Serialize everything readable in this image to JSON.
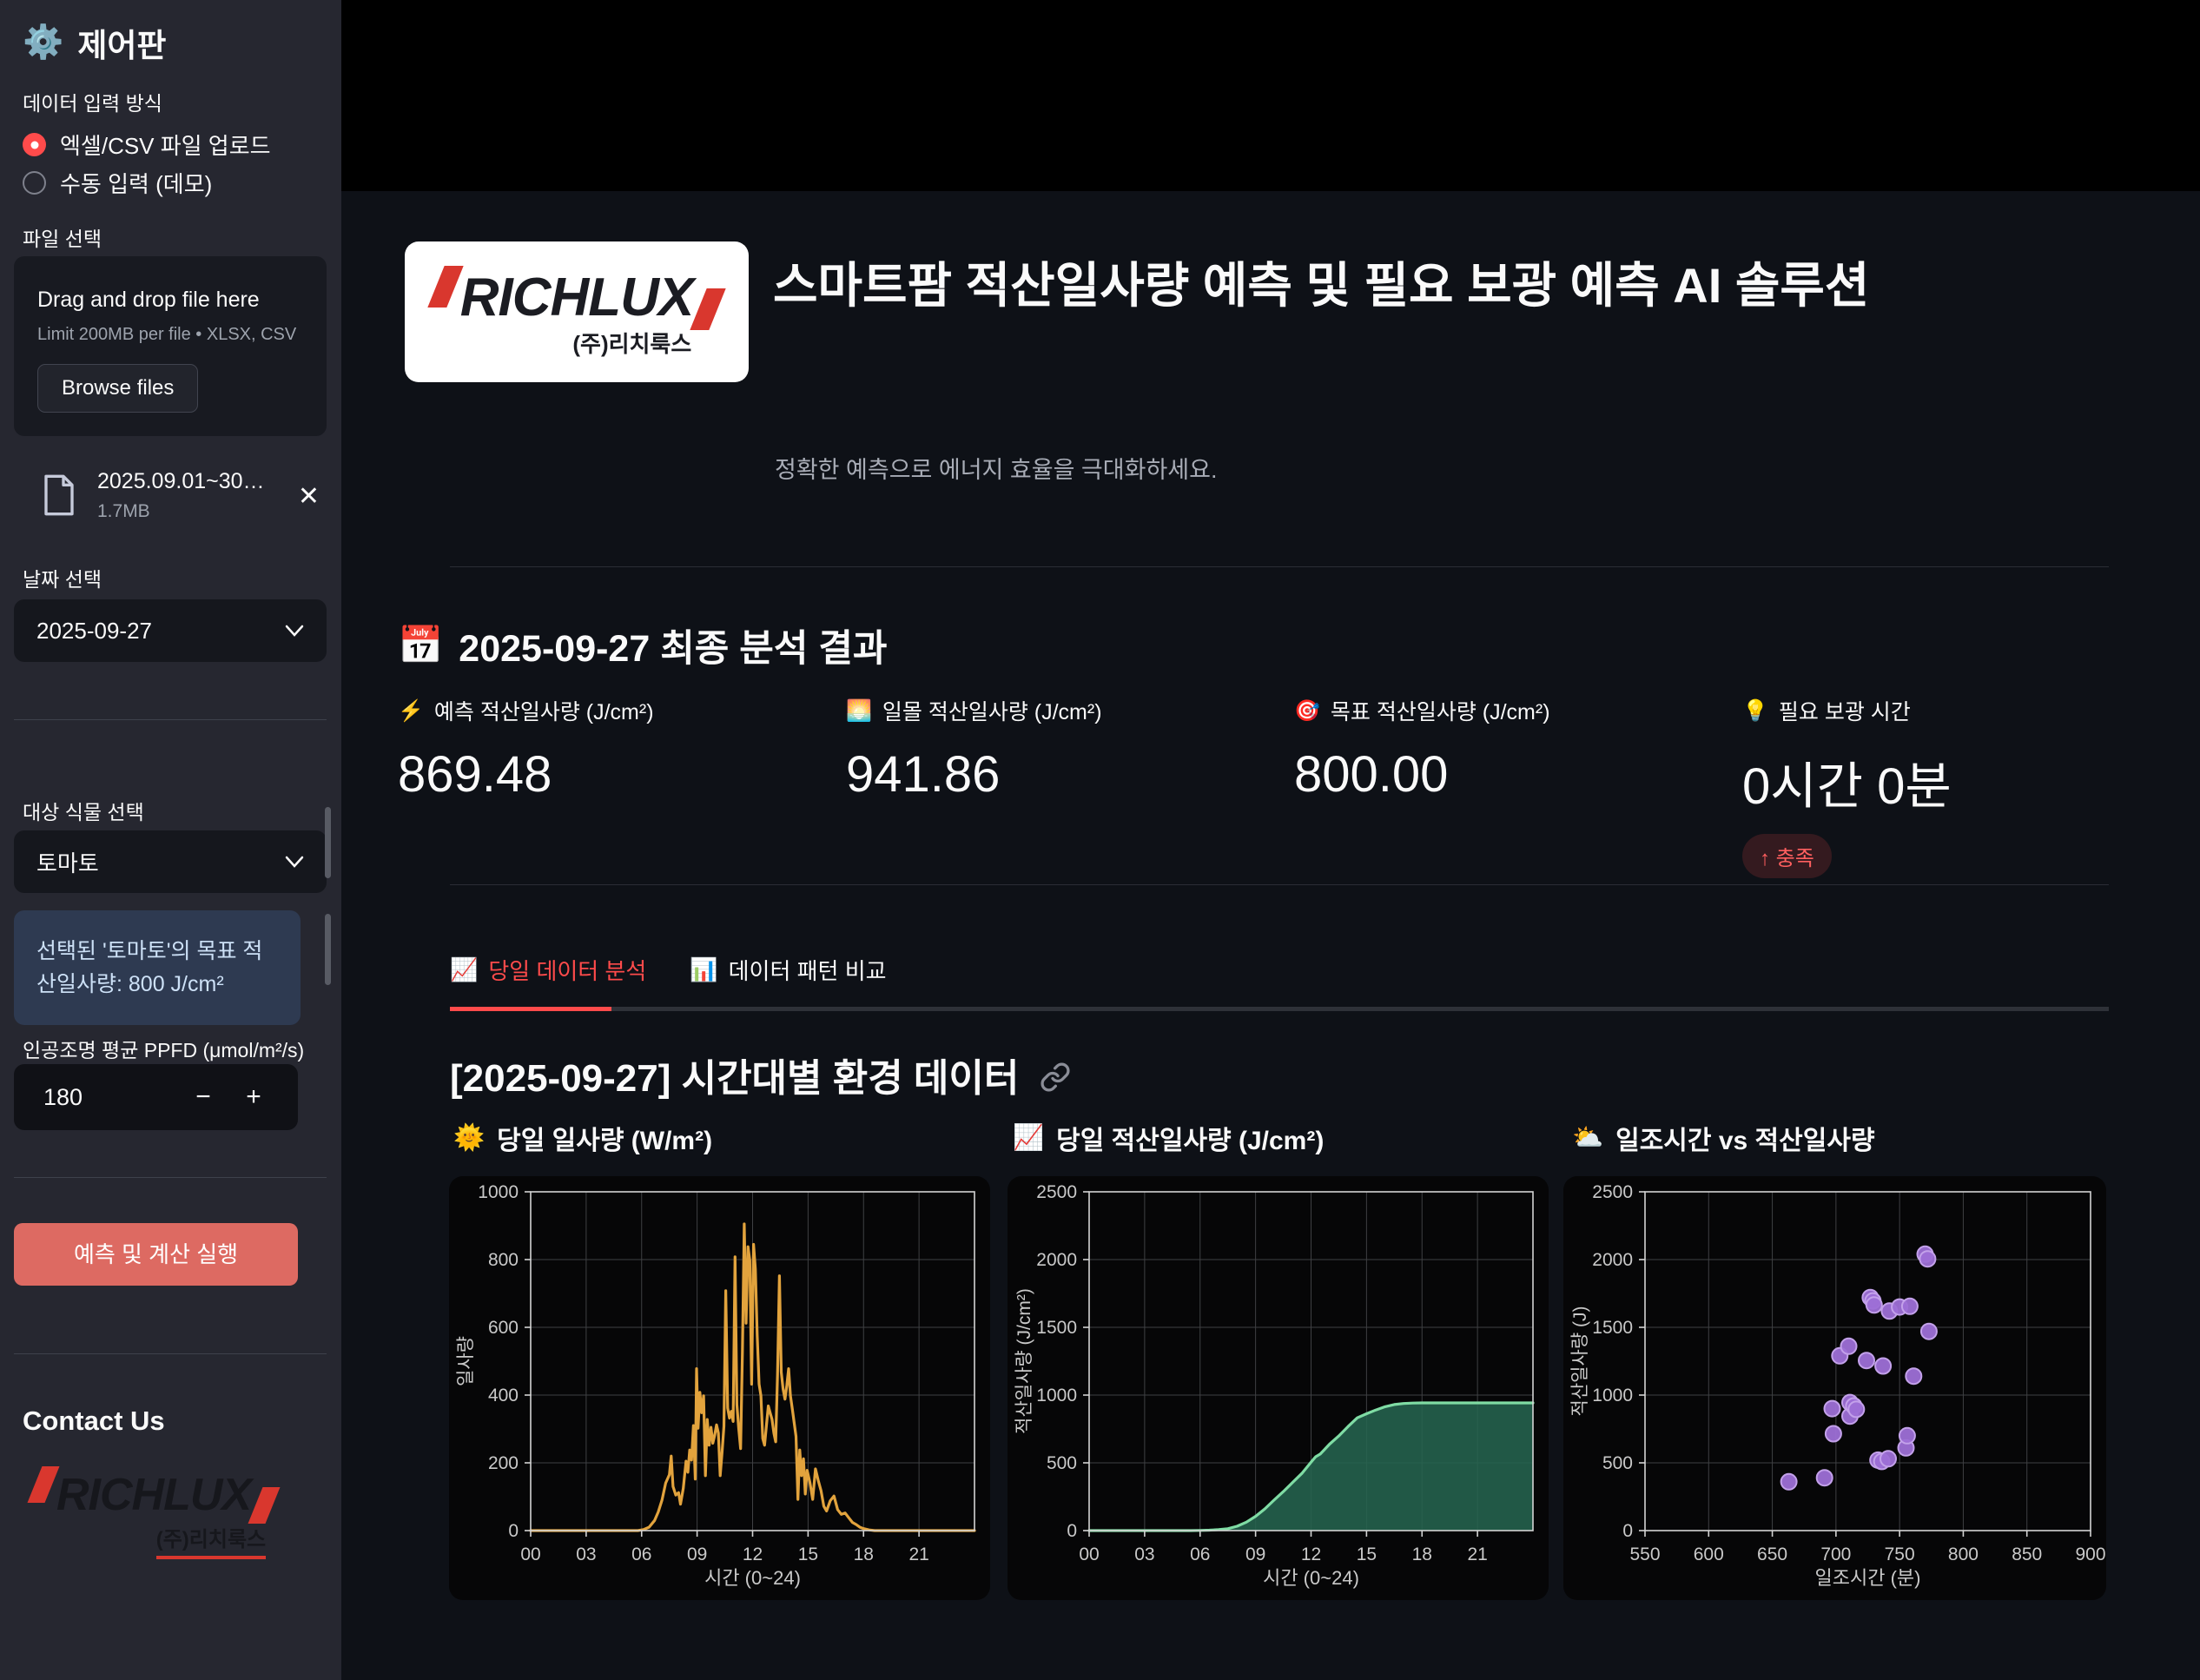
{
  "sidebar": {
    "title": "제어판",
    "gear_icon": "⚙️",
    "input_method": {
      "label": "데이터 입력 방식",
      "options": [
        {
          "label": "엑셀/CSV 파일 업로드",
          "selected": true
        },
        {
          "label": "수동 입력 (데모)",
          "selected": false
        }
      ]
    },
    "file_select": {
      "label": "파일 선택",
      "dropzone_title": "Drag and drop file here",
      "dropzone_hint": "Limit 200MB per file • XLSX, CSV",
      "browse_label": "Browse files",
      "file_name": "2025.09.01~30…",
      "file_size": "1.7MB",
      "close_icon": "✕"
    },
    "date_select": {
      "label": "날짜 선택",
      "value": "2025-09-27"
    },
    "plant_select": {
      "label": "대상 식물 선택",
      "value": "토마토"
    },
    "info_box": "선택된 '토마토'의 목표 적산일사량: 800 J/cm²",
    "ppfd": {
      "label": "인공조명 평균 PPFD (μmol/m²/s)",
      "value": "180",
      "minus": "−",
      "plus": "+"
    },
    "run_button": "예측 및 계산 실행",
    "contact_heading": "Contact Us"
  },
  "logo": {
    "brand": "RICHLUX",
    "subtitle": "(주)리치룩스"
  },
  "header": {
    "title": "스마트팜 적산일사량 예측 및 필요 보광 예측 AI 솔루션",
    "subtitle": "정확한 예측으로 에너지 효율을 극대화하세요."
  },
  "analysis": {
    "icon": "📅",
    "heading": "2025-09-27 최종 분석 결과",
    "metrics": [
      {
        "icon": "⚡",
        "label": "예측 적산일사량 (J/cm²)",
        "value": "869.48"
      },
      {
        "icon": "🌅",
        "label": "일몰 적산일사량 (J/cm²)",
        "value": "941.86"
      },
      {
        "icon": "🎯",
        "label": "목표 적산일사량 (J/cm²)",
        "value": "800.00"
      },
      {
        "icon": "💡",
        "label": "필요 보광 시간",
        "value": "0시간 0분",
        "delta": "↑ 충족"
      }
    ]
  },
  "tabs": [
    {
      "icon": "📈",
      "label": "당일 데이터 분석",
      "active": true
    },
    {
      "icon": "📊",
      "label": "데이터 패턴 비교",
      "active": false
    }
  ],
  "section": {
    "heading": "[2025-09-27] 시간대별 환경 데이터"
  },
  "colors": {
    "accent_red": "#ff4b4b",
    "button_red": "#dd6a62",
    "line_orange": "#e2a33d",
    "line_green": "#7fdca4",
    "fill_green": "#266450",
    "dot_purple": "#9d6fd6",
    "sidebar_bg": "#262730",
    "main_bg": "#0e1117"
  },
  "chart_data": [
    {
      "type": "line",
      "title": "🌞 당일 일사량 (W/m²)",
      "icon": "🌞",
      "title_text": "당일 일사량 (W/m²)",
      "xlabel": "시간 (0~24)",
      "ylabel": "일사량",
      "xlim": [
        0,
        24
      ],
      "ylim": [
        0,
        1000
      ],
      "xticks": [
        0,
        3,
        6,
        9,
        12,
        15,
        18,
        21
      ],
      "xtick_labels": [
        "00",
        "03",
        "06",
        "09",
        "12",
        "15",
        "18",
        "21"
      ],
      "yticks": [
        0,
        200,
        400,
        600,
        800,
        1000
      ],
      "grid": true,
      "color": "#e2a33d",
      "points": [
        [
          0,
          0
        ],
        [
          5.8,
          0
        ],
        [
          6.1,
          3
        ],
        [
          6.4,
          10
        ],
        [
          6.7,
          30
        ],
        [
          6.9,
          55
        ],
        [
          7.1,
          90
        ],
        [
          7.3,
          140
        ],
        [
          7.5,
          165
        ],
        [
          7.6,
          220
        ],
        [
          7.7,
          130
        ],
        [
          7.85,
          105
        ],
        [
          8,
          112
        ],
        [
          8.1,
          78
        ],
        [
          8.25,
          125
        ],
        [
          8.4,
          205
        ],
        [
          8.5,
          172
        ],
        [
          8.6,
          238
        ],
        [
          8.7,
          208
        ],
        [
          8.8,
          310
        ],
        [
          8.9,
          152
        ],
        [
          8.97,
          478
        ],
        [
          9.05,
          302
        ],
        [
          9.15,
          408
        ],
        [
          9.25,
          348
        ],
        [
          9.35,
          398
        ],
        [
          9.45,
          162
        ],
        [
          9.55,
          328
        ],
        [
          9.65,
          252
        ],
        [
          9.75,
          305
        ],
        [
          9.85,
          258
        ],
        [
          9.95,
          282
        ],
        [
          10.05,
          312
        ],
        [
          10.15,
          288
        ],
        [
          10.25,
          162
        ],
        [
          10.35,
          232
        ],
        [
          10.45,
          308
        ],
        [
          10.55,
          708
        ],
        [
          10.65,
          362
        ],
        [
          10.75,
          332
        ],
        [
          10.85,
          352
        ],
        [
          10.95,
          322
        ],
        [
          11.05,
          808
        ],
        [
          11.15,
          372
        ],
        [
          11.25,
          302
        ],
        [
          11.35,
          242
        ],
        [
          11.45,
          528
        ],
        [
          11.55,
          905
        ],
        [
          11.65,
          612
        ],
        [
          11.75,
          838
        ],
        [
          11.85,
          798
        ],
        [
          11.95,
          432
        ],
        [
          12.05,
          845
        ],
        [
          12.15,
          772
        ],
        [
          12.25,
          578
        ],
        [
          12.35,
          432
        ],
        [
          12.45,
          398
        ],
        [
          12.55,
          272
        ],
        [
          12.65,
          252
        ],
        [
          12.75,
          312
        ],
        [
          12.85,
          368
        ],
        [
          12.95,
          348
        ],
        [
          13.05,
          328
        ],
        [
          13.15,
          288
        ],
        [
          13.25,
          262
        ],
        [
          13.35,
          458
        ],
        [
          13.45,
          752
        ],
        [
          13.55,
          468
        ],
        [
          13.65,
          418
        ],
        [
          13.75,
          388
        ],
        [
          13.85,
          428
        ],
        [
          13.95,
          478
        ],
        [
          14.05,
          398
        ],
        [
          14.15,
          358
        ],
        [
          14.25,
          318
        ],
        [
          14.35,
          278
        ],
        [
          14.45,
          92
        ],
        [
          14.55,
          238
        ],
        [
          14.65,
          162
        ],
        [
          14.75,
          212
        ],
        [
          14.85,
          108
        ],
        [
          14.95,
          178
        ],
        [
          15.1,
          142
        ],
        [
          15.25,
          92
        ],
        [
          15.4,
          182
        ],
        [
          15.55,
          148
        ],
        [
          15.7,
          118
        ],
        [
          15.85,
          72
        ],
        [
          16,
          58
        ],
        [
          16.2,
          88
        ],
        [
          16.4,
          102
        ],
        [
          16.6,
          62
        ],
        [
          16.8,
          48
        ],
        [
          17,
          52
        ],
        [
          17.2,
          38
        ],
        [
          17.4,
          24
        ],
        [
          17.6,
          18
        ],
        [
          17.8,
          10
        ],
        [
          18,
          6
        ],
        [
          18.3,
          2
        ],
        [
          18.6,
          0
        ],
        [
          24,
          0
        ]
      ]
    },
    {
      "type": "area",
      "title": "📈 당일 적산일사량 (J/cm²)",
      "icon": "📈",
      "title_text": "당일 적산일사량 (J/cm²)",
      "xlabel": "시간 (0~24)",
      "ylabel": "적산일사량 (J/cm²)",
      "xlim": [
        0,
        24
      ],
      "ylim": [
        0,
        2500
      ],
      "xticks": [
        0,
        3,
        6,
        9,
        12,
        15,
        18,
        21
      ],
      "xtick_labels": [
        "00",
        "03",
        "06",
        "09",
        "12",
        "15",
        "18",
        "21"
      ],
      "yticks": [
        0,
        500,
        1000,
        1500,
        2000,
        2500
      ],
      "grid": true,
      "color": "#7fdca4",
      "fill": "#266450",
      "final_value": 941.86,
      "points": [
        [
          0,
          0
        ],
        [
          5.5,
          0
        ],
        [
          6,
          1
        ],
        [
          6.5,
          3
        ],
        [
          7,
          7
        ],
        [
          7.5,
          14
        ],
        [
          8,
          32
        ],
        [
          8.5,
          62
        ],
        [
          9,
          105
        ],
        [
          9.5,
          160
        ],
        [
          10,
          225
        ],
        [
          10.5,
          288
        ],
        [
          11,
          355
        ],
        [
          11.5,
          422
        ],
        [
          12,
          505
        ],
        [
          12.25,
          545
        ],
        [
          12.5,
          565
        ],
        [
          13,
          638
        ],
        [
          13.5,
          698
        ],
        [
          14,
          768
        ],
        [
          14.5,
          832
        ],
        [
          15,
          862
        ],
        [
          15.5,
          890
        ],
        [
          16,
          914
        ],
        [
          16.5,
          930
        ],
        [
          17,
          938
        ],
        [
          17.5,
          941
        ],
        [
          18,
          942
        ],
        [
          24,
          942
        ]
      ]
    },
    {
      "type": "scatter",
      "title": "⛅ 일조시간 vs 적산일사량",
      "icon": "⛅",
      "title_text": "일조시간 vs 적산일사량",
      "xlabel": "일조시간 (분)",
      "ylabel": "적산일사량 (J)",
      "xlim": [
        550,
        900
      ],
      "ylim": [
        0,
        2500
      ],
      "xticks": [
        550,
        600,
        650,
        700,
        750,
        800,
        850,
        900
      ],
      "xtick_labels": [
        "550",
        "600",
        "650",
        "700",
        "750",
        "800",
        "850",
        "900"
      ],
      "yticks": [
        0,
        500,
        1000,
        1500,
        2000,
        2500
      ],
      "grid": true,
      "color": "#9d6fd6",
      "stroke": "#c3a1ea",
      "points": [
        [
          663,
          360
        ],
        [
          691,
          390
        ],
        [
          697,
          900
        ],
        [
          698,
          715
        ],
        [
          703,
          1290
        ],
        [
          710,
          1360
        ],
        [
          711,
          945
        ],
        [
          711,
          845
        ],
        [
          714,
          920
        ],
        [
          716,
          895
        ],
        [
          724,
          1255
        ],
        [
          727,
          1720
        ],
        [
          729,
          1695
        ],
        [
          730,
          1665
        ],
        [
          733,
          520
        ],
        [
          736,
          510
        ],
        [
          737,
          1215
        ],
        [
          741,
          530
        ],
        [
          742,
          1620
        ],
        [
          750,
          1650
        ],
        [
          755,
          610
        ],
        [
          756,
          700
        ],
        [
          758,
          1655
        ],
        [
          761,
          1140
        ],
        [
          770,
          2040
        ],
        [
          772,
          2005
        ],
        [
          773,
          1470
        ]
      ]
    }
  ]
}
